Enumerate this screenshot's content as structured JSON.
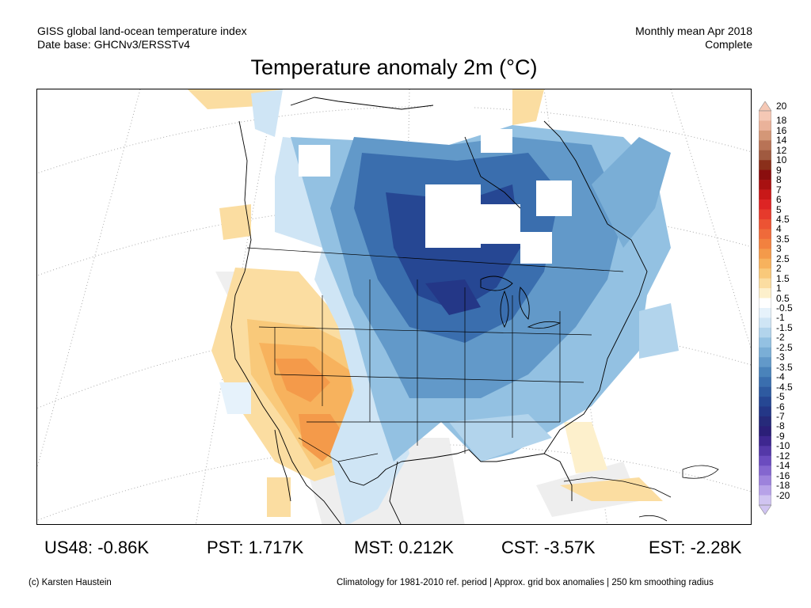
{
  "header": {
    "left_line1": "GISS global land-ocean temperature index",
    "left_line2": "Date base: GHCNv3/ERSSTv4",
    "right_line1": "Monthly mean Apr 2018",
    "right_line2": "Complete"
  },
  "title": "Temperature anomaly 2m (°C)",
  "colorbar": {
    "labels": [
      "20",
      "18",
      "16",
      "14",
      "12",
      "10",
      "9",
      "8",
      "7",
      "6",
      "5",
      "4.5",
      "4",
      "3.5",
      "3",
      "2.5",
      "2",
      "1.5",
      "1",
      "0.5",
      "-0.5",
      "-1",
      "-1.5",
      "-2",
      "-2.5",
      "-3",
      "-3.5",
      "-4",
      "-4.5",
      "-5",
      "-6",
      "-7",
      "-8",
      "-9",
      "-10",
      "-12",
      "-14",
      "-16",
      "-18",
      "-20"
    ],
    "colors": [
      "#f5c8b5",
      "#eab29a",
      "#d49777",
      "#b87356",
      "#a05a40",
      "#8a2f1a",
      "#8a0e0e",
      "#a81111",
      "#c81818",
      "#dd2424",
      "#e63a2c",
      "#ec5333",
      "#ef6a3a",
      "#f2813f",
      "#f49a4a",
      "#f7b25d",
      "#f9c97a",
      "#fbdda1",
      "#fdf0cc",
      "#ffffff",
      "#e6f2fb",
      "#cfe5f5",
      "#b2d4ec",
      "#93c1e2",
      "#7aaed6",
      "#6299c9",
      "#4a83ba",
      "#3a6eae",
      "#2e5aa0",
      "#264793",
      "#243787",
      "#262a7a",
      "#2b1f78",
      "#3e2790",
      "#5438a8",
      "#6b4cbf",
      "#8466cf",
      "#9d82dc",
      "#b7a2e8",
      "#d0c4f1"
    ]
  },
  "stats": [
    {
      "label": "US48: -0.86K"
    },
    {
      "label": "PST: 1.717K"
    },
    {
      "label": "MST: 0.212K"
    },
    {
      "label": "CST: -3.57K"
    },
    {
      "label": "EST: -2.28K"
    }
  ],
  "footer": {
    "left": "(c) Karsten Haustein",
    "right": "Climatology for 1981-2010 ref. period | Approx. grid box anomalies | 250 km smoothing radius"
  }
}
